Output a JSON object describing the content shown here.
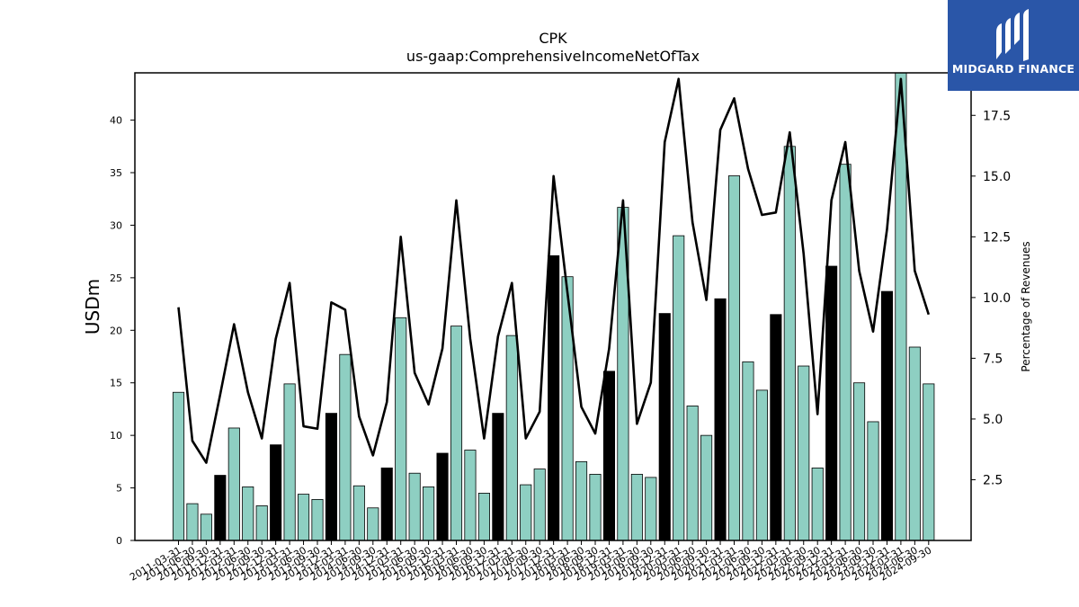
{
  "chart_data": {
    "type": "bar",
    "title": "CPK",
    "subtitle": "us-gaap:ComprehensiveIncomeNetOfTax",
    "ylabel": "USDm",
    "y2label": "Percentage of Revenues",
    "ylim": [
      0,
      44.5
    ],
    "y2lim": [
      0,
      19.25
    ],
    "yticks": [
      0,
      5,
      10,
      15,
      20,
      25,
      30,
      35,
      40
    ],
    "y2ticks": [
      "2.5",
      "5.0",
      "7.5",
      "10.0",
      "12.5",
      "15.0",
      "17.5"
    ],
    "categories": [
      "2011-03-31",
      "2011-06-30",
      "2011-09-30",
      "2011-12-31",
      "2012-03-31",
      "2012-06-30",
      "2012-09-30",
      "2012-12-31",
      "2013-03-31",
      "2013-06-30",
      "2013-09-30",
      "2013-12-31",
      "2014-03-31",
      "2014-06-30",
      "2014-09-30",
      "2014-12-31",
      "2015-03-31",
      "2015-06-30",
      "2015-09-30",
      "2015-12-31",
      "2016-03-31",
      "2016-06-30",
      "2016-09-30",
      "2016-12-31",
      "2017-03-31",
      "2017-06-30",
      "2017-09-30",
      "2017-12-31",
      "2018-03-31",
      "2018-06-30",
      "2018-09-30",
      "2018-12-31",
      "2019-03-31",
      "2019-06-30",
      "2019-09-30",
      "2019-12-31",
      "2020-03-31",
      "2020-06-30",
      "2020-09-30",
      "2020-12-31",
      "2021-03-31",
      "2021-06-30",
      "2021-09-30",
      "2021-12-31",
      "2022-03-31",
      "2022-06-30",
      "2022-09-30",
      "2022-12-31",
      "2023-03-31",
      "2023-06-30",
      "2023-09-30",
      "2023-12-31",
      "2024-03-31",
      "2024-06-30",
      "2024-09-30"
    ],
    "visible_xtick_labels": [
      "2011-03-31",
      "2011-06-30",
      "2011-09-30",
      "2011-12-31",
      "2012-03-31",
      "2012-06-30",
      "2012-09-30",
      "2012-12-31",
      "2013-03-31",
      "2013-06-30",
      "2013-09-30",
      "2013-12-31",
      "2014-03-31",
      "2014-06-30",
      "2014-09-30",
      "2014-12-31",
      "2015-03-31",
      "2015-06-30",
      "2015-09-30",
      "2015-12-31",
      "2016-03-31",
      "2016-06-30",
      "2016-09-30",
      "2016-12-31",
      "2017-03-31",
      "2017-06-30",
      "2017-09-30",
      "2017-12-31",
      "2018-03-31",
      "2018-06-30",
      "2018-09-30",
      "2018-12-31",
      "2019-03-31",
      "2019-06-30",
      "2019-09-30",
      "2019-12-31",
      "2020-03-31",
      "2020-06-30",
      "2020-09-30",
      "2020-12-31",
      "2021-03-31",
      "2021-06-30",
      "2021-09-30",
      "2021-12-31",
      "2022-03-31",
      "2022-06-30",
      "2022-09-30",
      "2022-12-31",
      "2023-03-31",
      "2023-06-30",
      "2023-09-30",
      "2023-12-31",
      "2024-03-31",
      "2024-06-30",
      "2024-09-30"
    ],
    "series": [
      {
        "axis": "left",
        "kind": "bar",
        "values": [
          14.1,
          3.5,
          2.5,
          6.2,
          10.7,
          5.1,
          3.3,
          9.1,
          14.9,
          4.4,
          3.9,
          12.1,
          17.7,
          5.2,
          3.1,
          6.9,
          21.2,
          6.4,
          5.1,
          8.3,
          20.4,
          8.6,
          4.5,
          12.1,
          19.5,
          5.3,
          6.8,
          27.1,
          25.1,
          7.5,
          6.3,
          16.1,
          31.7,
          6.3,
          6.0,
          21.6,
          29.0,
          12.8,
          10.0,
          23.0,
          34.7,
          17.0,
          14.3,
          21.5,
          37.5,
          16.6,
          6.9,
          26.1,
          35.8,
          15.0,
          11.3,
          23.7,
          44.9,
          18.4,
          14.9
        ]
      },
      {
        "axis": "right",
        "kind": "line",
        "values": [
          9.6,
          4.1,
          3.2,
          6.0,
          8.9,
          6.1,
          4.2,
          8.3,
          10.6,
          4.7,
          4.6,
          9.8,
          9.5,
          5.1,
          3.5,
          5.7,
          12.5,
          6.9,
          5.6,
          7.9,
          14.0,
          8.3,
          4.2,
          8.4,
          10.6,
          4.2,
          5.3,
          15.0,
          10.2,
          5.5,
          4.4,
          7.9,
          14.0,
          4.8,
          6.5,
          16.4,
          19.0,
          13.1,
          9.9,
          16.9,
          18.2,
          15.3,
          13.4,
          13.5,
          16.8,
          11.8,
          5.2,
          14.0,
          16.4,
          11.1,
          8.6,
          12.8,
          19.0,
          11.1,
          9.3
        ]
      }
    ],
    "colors": {
      "bar_teal": "#8ecfc2",
      "bar_black": "#000000",
      "line": "#000000"
    }
  },
  "logo": {
    "text": "MIDGARD FINANCE",
    "background": "#2a56a8"
  }
}
